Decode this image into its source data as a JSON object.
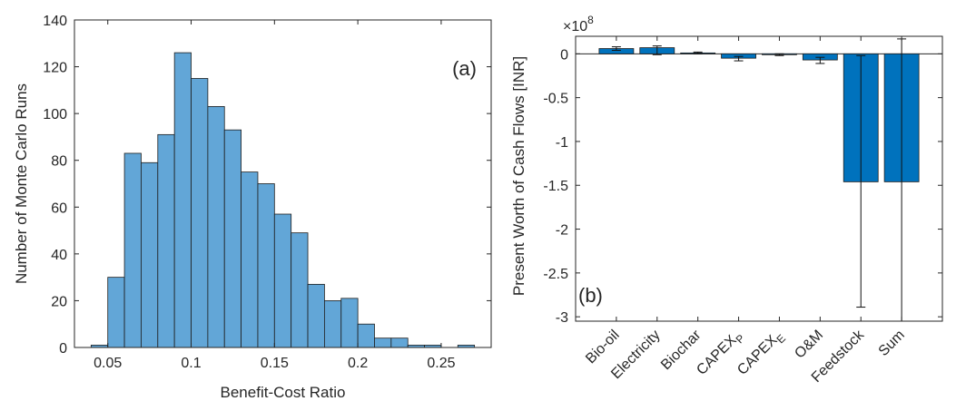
{
  "chart_data": [
    {
      "type": "bar",
      "subtype": "histogram",
      "panel_label": "(a)",
      "xlabel": "Benefit-Cost Ratio",
      "ylabel": "Number of Monte Carlo Runs",
      "xlim": [
        0.03,
        0.28
      ],
      "ylim": [
        0,
        140
      ],
      "xticks": [
        0.05,
        0.1,
        0.15,
        0.2,
        0.25
      ],
      "xtick_labels": [
        "0.05",
        "0.1",
        "0.15",
        "0.2",
        "0.25"
      ],
      "yticks": [
        0,
        20,
        40,
        60,
        80,
        100,
        120,
        140
      ],
      "ytick_labels": [
        "0",
        "20",
        "40",
        "60",
        "80",
        "100",
        "120",
        "140"
      ],
      "bin_edges": [
        0.04,
        0.05,
        0.06,
        0.07,
        0.08,
        0.09,
        0.1,
        0.11,
        0.12,
        0.13,
        0.14,
        0.15,
        0.16,
        0.17,
        0.18,
        0.19,
        0.2,
        0.21,
        0.22,
        0.23,
        0.24,
        0.25
      ],
      "counts": [
        1,
        30,
        83,
        79,
        91,
        126,
        115,
        103,
        93,
        75,
        70,
        57,
        49,
        27,
        20,
        21,
        10,
        4,
        4,
        1,
        1
      ],
      "extra_bins": [
        {
          "edges": [
            0.26,
            0.27
          ],
          "count": 1
        }
      ],
      "bar_color": "#62a6d7",
      "edge_color": "#1e1e1e"
    },
    {
      "type": "bar",
      "panel_label": "(b)",
      "ylabel": "Present Worth of Cash Flows [INR]",
      "multiplier_base": "×10",
      "multiplier_exp": "8",
      "categories": [
        {
          "main": "Bio-oil",
          "sub": ""
        },
        {
          "main": "Electricity",
          "sub": ""
        },
        {
          "main": "Biochar",
          "sub": ""
        },
        {
          "main": "CAPEX",
          "sub": "P"
        },
        {
          "main": "CAPEX",
          "sub": "E"
        },
        {
          "main": "O&M",
          "sub": ""
        },
        {
          "main": "Feedstock",
          "sub": ""
        },
        {
          "main": "Sum",
          "sub": ""
        }
      ],
      "values": [
        0.06,
        0.07,
        0.01,
        -0.05,
        -0.01,
        -0.07,
        -1.46,
        -1.46
      ],
      "error_low": [
        0.04,
        -0.01,
        0.0,
        -0.08,
        -0.02,
        -0.11,
        -2.89,
        -3.05
      ],
      "error_high": [
        0.08,
        0.09,
        0.02,
        -0.03,
        0.0,
        -0.04,
        -0.02,
        0.17
      ],
      "ylim": [
        -3.05,
        0.2
      ],
      "yticks": [
        0,
        -0.5,
        -1,
        -1.5,
        -2,
        -2.5,
        -3
      ],
      "ytick_labels": [
        "0",
        "-0.5",
        "-1",
        "-1.5",
        "-2",
        "-2.5",
        "-3"
      ],
      "bar_color": "#0072bd"
    }
  ]
}
